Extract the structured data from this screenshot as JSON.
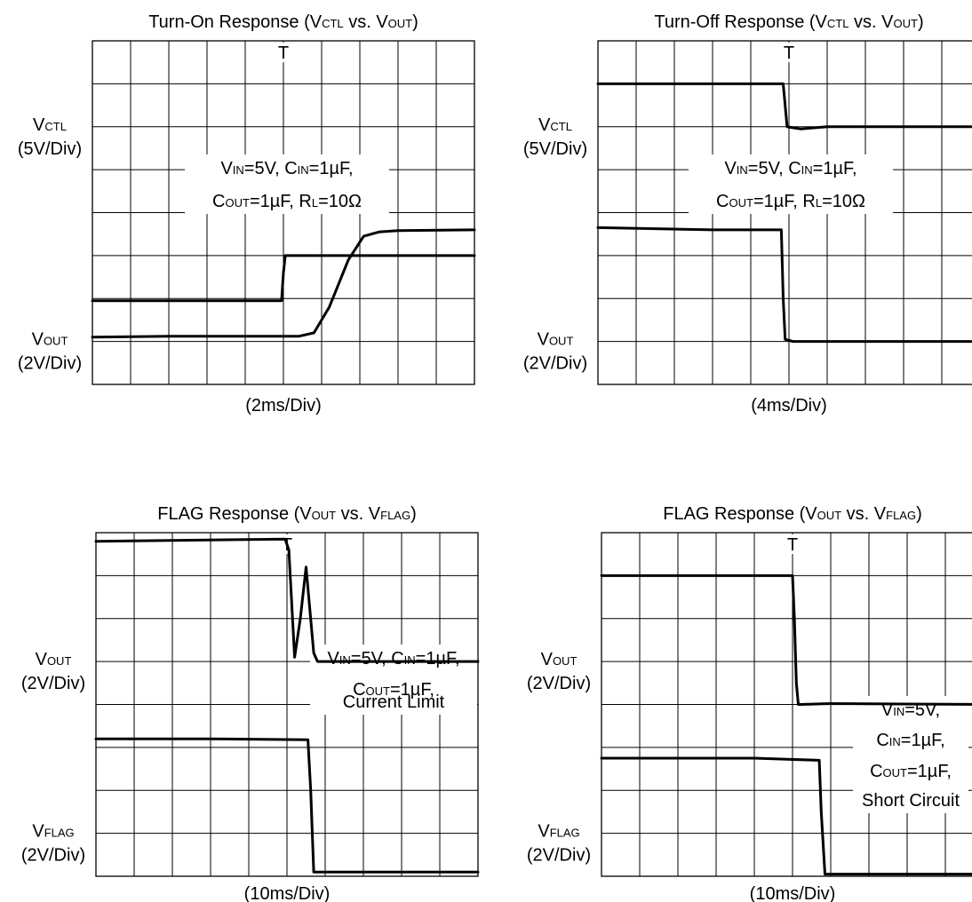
{
  "chart_data": [
    {
      "type": "line",
      "title": "Turn-On Response (VCTL vs. VOUT)",
      "title_parts": [
        "Turn-On Response (V",
        "CTL",
        " vs. V",
        "OUT",
        ")"
      ],
      "xlabel": "(2ms/Div)",
      "trigger_label": "T",
      "annotation": [
        [
          "V",
          "IN",
          "=5V, C",
          "IN",
          "=1µF,"
        ],
        [
          "C",
          "OUT",
          "=1µF, R",
          "L",
          "=10Ω"
        ]
      ],
      "grid": {
        "x_divisions": 10,
        "y_divisions": 8,
        "visible": true
      },
      "channels": [
        {
          "name": "VCTL",
          "label": [
            "V",
            "CTL"
          ],
          "scale": "(5V/Div)",
          "label_div": 2,
          "x": [
            0,
            4.95,
            5.0,
            5.05,
            10
          ],
          "y": [
            1.95,
            1.95,
            2.6,
            3.0,
            3.0
          ]
        },
        {
          "name": "VOUT",
          "label": [
            "V",
            "OUT"
          ],
          "scale": "(2V/Div)",
          "label_div": 7,
          "x": [
            0,
            2,
            4,
            5.4,
            5.8,
            6.2,
            6.7,
            7.1,
            7.5,
            8,
            10
          ],
          "y": [
            1.1,
            1.12,
            1.12,
            1.12,
            1.2,
            1.8,
            2.9,
            3.45,
            3.55,
            3.58,
            3.6
          ]
        }
      ]
    },
    {
      "type": "line",
      "title": "Turn-Off Response (VCTL vs. VOUT)",
      "title_parts": [
        "Turn-Off Response (V",
        "CTL",
        " vs. V",
        "OUT",
        ")"
      ],
      "xlabel": "(4ms/Div)",
      "trigger_label": "T",
      "annotation": [
        [
          "V",
          "IN",
          "=5V, C",
          "IN",
          "=1µF,"
        ],
        [
          "C",
          "OUT",
          "=1µF, R",
          "L",
          "=10Ω"
        ]
      ],
      "grid": {
        "x_divisions": 10,
        "y_divisions": 8,
        "visible": true
      },
      "channels": [
        {
          "name": "VCTL",
          "label": [
            "V",
            "CTL"
          ],
          "scale": "(5V/Div)",
          "label_div": 2,
          "x": [
            0,
            4.85,
            4.9,
            4.95,
            5.3,
            6,
            10
          ],
          "y": [
            7.0,
            7.0,
            6.5,
            6.0,
            5.95,
            6.0,
            6.0
          ]
        },
        {
          "name": "VOUT",
          "label": [
            "V",
            "OUT"
          ],
          "scale": "(2V/Div)",
          "label_div": 7,
          "x": [
            0,
            3,
            4.8,
            4.85,
            4.9,
            5.1,
            10
          ],
          "y": [
            3.65,
            3.6,
            3.6,
            2.0,
            1.05,
            1.0,
            1.0
          ]
        }
      ]
    },
    {
      "type": "line",
      "title": "FLAG Response (VOUT vs. VFLAG)",
      "title_parts": [
        "FLAG Response (V",
        "OUT",
        " vs. V",
        "FLAG",
        ")"
      ],
      "xlabel": "(10ms/Div)",
      "trigger_label": "T",
      "annotation": [
        [
          "V",
          "IN",
          "=5V, C",
          "IN",
          "=1µF,"
        ],
        [
          "C",
          "OUT",
          "=1µF,"
        ],
        [
          "Current Limit"
        ]
      ],
      "grid": {
        "x_divisions": 10,
        "y_divisions": 8,
        "visible": true
      },
      "channels": [
        {
          "name": "VOUT",
          "label": [
            "V",
            "OUT"
          ],
          "scale": "(2V/Div)",
          "label_div": 3,
          "x": [
            0,
            4.95,
            5.05,
            5.2,
            5.35,
            5.5,
            5.6,
            5.7,
            5.8,
            10
          ],
          "y": [
            7.8,
            7.85,
            7.6,
            5.1,
            6.0,
            7.2,
            6.2,
            5.2,
            5.0,
            5.0
          ]
        },
        {
          "name": "VFLAG",
          "label": [
            "V",
            "FLAG"
          ],
          "scale": "(2V/Div)",
          "label_div": 7,
          "x": [
            0,
            3,
            5.55,
            5.62,
            5.7,
            10
          ],
          "y": [
            3.2,
            3.2,
            3.18,
            2.0,
            0.1,
            0.1
          ]
        }
      ]
    },
    {
      "type": "line",
      "title": "FLAG Response (VOUT vs. VFLAG)",
      "title_parts": [
        "FLAG Response (V",
        "OUT",
        " vs. V",
        "FLAG",
        ")"
      ],
      "xlabel": "(10ms/Div)",
      "trigger_label": "T",
      "annotation": [
        [
          "V",
          "IN",
          "=5V,"
        ],
        [
          "C",
          "IN",
          "=1µF,"
        ],
        [
          "C",
          "OUT",
          "=1µF,"
        ],
        [
          "Short Circuit"
        ]
      ],
      "grid": {
        "x_divisions": 10,
        "y_divisions": 8,
        "visible": true
      },
      "channels": [
        {
          "name": "VOUT",
          "label": [
            "V",
            "OUT"
          ],
          "scale": "(2V/Div)",
          "label_div": 3,
          "x": [
            0,
            5,
            5.05,
            5.1,
            5.15,
            5.2,
            6,
            10
          ],
          "y": [
            7.0,
            7.0,
            6.0,
            4.5,
            4.0,
            4.0,
            4.02,
            4.0
          ]
        },
        {
          "name": "VFLAG",
          "label": [
            "V",
            "FLAG"
          ],
          "scale": "(2V/Div)",
          "label_div": 7,
          "x": [
            0,
            4,
            5.7,
            5.75,
            5.85,
            10
          ],
          "y": [
            2.75,
            2.75,
            2.7,
            1.5,
            0.05,
            0.05
          ]
        }
      ]
    }
  ]
}
